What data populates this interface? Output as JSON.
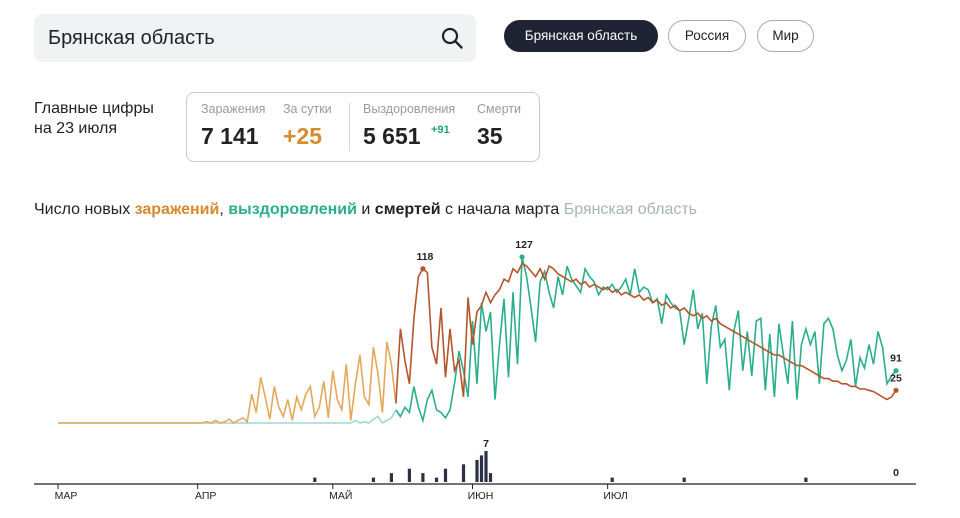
{
  "search": {
    "value": "Брянская область"
  },
  "region_buttons": [
    "Брянская область",
    "Россия",
    "Мир"
  ],
  "summary": {
    "title_line1": "Главные цифры",
    "title_line2": "на 23 июля",
    "infections_label": "Заражения",
    "infections_value": "7 141",
    "per_day_label": "За сутки",
    "per_day_value": "+25",
    "recoveries_label": "Выздоровления",
    "recoveries_value": "5 651",
    "recoveries_delta": "+91",
    "deaths_label": "Смерти",
    "deaths_value": "35"
  },
  "chart_title": {
    "part1": "Число новых ",
    "infections": "заражений",
    "sep": ", ",
    "recoveries": "выздоровлений",
    "and": " и ",
    "deaths": "смертей",
    "part2": " с начала марта ",
    "region": "Брянская область"
  },
  "colors": {
    "infections": "#d7892b",
    "recoveries": "#2aae8c",
    "deaths": "#2d3145",
    "active_button": "#1f2333"
  },
  "icons": {
    "search": "search-icon"
  },
  "chart_data": [
    {
      "type": "line",
      "title": "Число новых заражений, выздоровлений и смертей с начала марта",
      "x_tick_labels": [
        "МАР",
        "АПР",
        "МАЙ",
        "ИЮН",
        "ИЮЛ"
      ],
      "series": [
        {
          "name": "заражений",
          "color": "#d7892b",
          "values": [
            0,
            0,
            0,
            0,
            0,
            0,
            0,
            0,
            0,
            0,
            0,
            0,
            0,
            0,
            0,
            0,
            0,
            0,
            0,
            0,
            0,
            0,
            0,
            0,
            0,
            0,
            0,
            0,
            0,
            0,
            0,
            0,
            0,
            1,
            0,
            2,
            0,
            1,
            3,
            0,
            2,
            4,
            1,
            22,
            8,
            35,
            20,
            3,
            28,
            12,
            5,
            18,
            2,
            20,
            10,
            22,
            28,
            5,
            12,
            32,
            4,
            40,
            18,
            10,
            45,
            2,
            30,
            52,
            20,
            14,
            58,
            38,
            8,
            62,
            45,
            15,
            72,
            48,
            30,
            80,
            112,
            118,
            115,
            58,
            45,
            88,
            35,
            72,
            40,
            48,
            20,
            96,
            60,
            85,
            90,
            100,
            92,
            98,
            102,
            110,
            108,
            118,
            115,
            122,
            120,
            116,
            112,
            118,
            110,
            120,
            118,
            114,
            112,
            110,
            108,
            110,
            106,
            108,
            104,
            106,
            104,
            102,
            104,
            100,
            102,
            98,
            100,
            98,
            96,
            98,
            94,
            96,
            92,
            94,
            90,
            92,
            88,
            90,
            86,
            88,
            84,
            82,
            84,
            80,
            82,
            78,
            80,
            76,
            74,
            72,
            70,
            68,
            66,
            64,
            62,
            60,
            58,
            56,
            54,
            52,
            52,
            50,
            48,
            46,
            44,
            44,
            42,
            40,
            38,
            36,
            34,
            34,
            32,
            32,
            30,
            30,
            28,
            28,
            26,
            26,
            25,
            24,
            22,
            20,
            18,
            20,
            25
          ]
        },
        {
          "name": "выздоровлений",
          "color": "#2aae8c",
          "values": [
            0,
            0,
            0,
            0,
            0,
            0,
            0,
            0,
            0,
            0,
            0,
            0,
            0,
            0,
            0,
            0,
            0,
            0,
            0,
            0,
            0,
            0,
            0,
            0,
            0,
            0,
            0,
            0,
            0,
            0,
            0,
            0,
            0,
            0,
            0,
            0,
            0,
            0,
            0,
            0,
            0,
            0,
            0,
            0,
            0,
            0,
            0,
            0,
            0,
            0,
            0,
            0,
            0,
            0,
            0,
            0,
            0,
            0,
            0,
            0,
            0,
            0,
            0,
            0,
            0,
            0,
            2,
            0,
            1,
            0,
            3,
            5,
            0,
            2,
            4,
            10,
            5,
            12,
            8,
            28,
            12,
            2,
            18,
            25,
            10,
            8,
            4,
            10,
            30,
            55,
            40,
            20,
            78,
            30,
            92,
            70,
            85,
            18,
            60,
            95,
            35,
            100,
            45,
            127,
            112,
            88,
            62,
            108,
            116,
            100,
            88,
            112,
            98,
            120,
            110,
            105,
            100,
            118,
            112,
            108,
            98,
            104,
            102,
            106,
            100,
            104,
            110,
            98,
            118,
            100,
            104,
            102,
            92,
            95,
            76,
            98,
            92,
            88,
            86,
            60,
            80,
            102,
            72,
            84,
            30,
            74,
            90,
            58,
            64,
            25,
            70,
            86,
            40,
            70,
            36,
            78,
            80,
            25,
            68,
            20,
            76,
            52,
            30,
            78,
            18,
            60,
            72,
            60,
            70,
            30,
            76,
            80,
            72,
            52,
            40,
            48,
            64,
            28,
            50,
            42,
            60,
            45,
            70,
            58,
            30,
            36,
            40,
            91
          ]
        },
        {
          "name": "смертей",
          "color": "#2d3145",
          "type": "bar",
          "values": [
            0,
            0,
            0,
            0,
            0,
            0,
            0,
            0,
            0,
            0,
            0,
            0,
            0,
            0,
            0,
            0,
            0,
            0,
            0,
            0,
            0,
            0,
            0,
            0,
            0,
            0,
            0,
            0,
            0,
            0,
            0,
            0,
            0,
            0,
            0,
            0,
            0,
            0,
            0,
            0,
            0,
            0,
            0,
            0,
            0,
            0,
            0,
            0,
            0,
            0,
            0,
            0,
            0,
            0,
            0,
            0,
            0,
            1,
            0,
            0,
            0,
            0,
            0,
            0,
            0,
            0,
            0,
            0,
            0,
            0,
            1,
            0,
            0,
            0,
            2,
            0,
            0,
            0,
            3,
            0,
            0,
            2,
            0,
            0,
            1,
            0,
            3,
            0,
            0,
            0,
            4,
            0,
            0,
            5,
            6,
            7,
            2,
            0,
            0,
            0,
            0,
            0,
            0,
            0,
            0,
            0,
            0,
            0,
            0,
            0,
            0,
            0,
            0,
            0,
            0,
            0,
            0,
            0,
            0,
            0,
            0,
            0,
            0,
            1,
            0,
            0,
            0,
            0,
            0,
            0,
            0,
            0,
            0,
            0,
            0,
            0,
            0,
            0,
            0,
            1,
            0,
            0,
            0,
            0,
            0,
            0,
            0,
            0,
            0,
            0,
            0,
            0,
            0,
            0,
            0,
            0,
            0,
            0,
            0,
            0,
            0,
            0,
            0,
            0,
            0,
            0,
            1,
            0,
            0,
            0,
            0,
            0,
            0,
            0,
            0,
            0,
            0,
            0,
            0,
            0,
            0,
            0,
            0,
            0,
            0
          ]
        }
      ],
      "annotations": [
        "118",
        "127",
        "91",
        "25",
        "7",
        "0"
      ]
    }
  ]
}
